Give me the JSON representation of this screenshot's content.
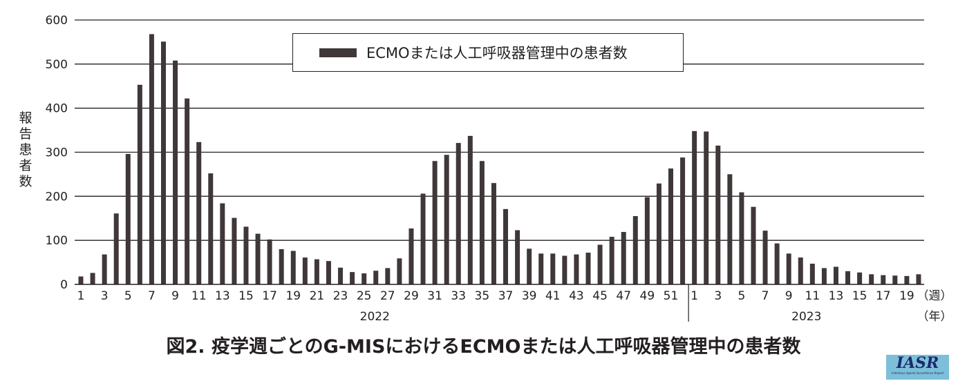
{
  "chart_data": {
    "type": "bar",
    "title": "図2. 疫学週ごとのG-MISにおけるECMOまたは人工呼吸器管理中の患者数",
    "ylabel": "報告患者数",
    "xlabel_week": "（週）",
    "xlabel_year": "（年）",
    "ylim": [
      0,
      600
    ],
    "yticks": [
      0,
      100,
      200,
      300,
      400,
      500,
      600
    ],
    "legend": "ECMOまたは人工呼吸器管理中の患者数",
    "legend_position": "top-center",
    "grid": true,
    "years": [
      {
        "label": "2022",
        "weeks": 52
      },
      {
        "label": "2023",
        "weeks": 20
      }
    ],
    "categories": [
      1,
      2,
      3,
      4,
      5,
      6,
      7,
      8,
      9,
      10,
      11,
      12,
      13,
      14,
      15,
      16,
      17,
      18,
      19,
      20,
      21,
      22,
      23,
      24,
      25,
      26,
      27,
      28,
      29,
      30,
      31,
      32,
      33,
      34,
      35,
      36,
      37,
      38,
      39,
      40,
      41,
      42,
      43,
      44,
      45,
      46,
      47,
      48,
      49,
      50,
      51,
      52,
      1,
      2,
      3,
      4,
      5,
      6,
      7,
      8,
      9,
      10,
      11,
      12,
      13,
      14,
      15,
      16,
      17,
      18,
      19,
      20
    ],
    "values": [
      18,
      26,
      68,
      161,
      296,
      453,
      568,
      551,
      508,
      422,
      323,
      252,
      184,
      151,
      131,
      115,
      102,
      80,
      76,
      61,
      57,
      53,
      38,
      28,
      25,
      31,
      37,
      59,
      127,
      206,
      280,
      294,
      321,
      337,
      280,
      230,
      171,
      123,
      81,
      70,
      70,
      65,
      68,
      72,
      90,
      108,
      119,
      155,
      198,
      229,
      263,
      288,
      348,
      347,
      315,
      250,
      209,
      176,
      122,
      93,
      70,
      61,
      47,
      37,
      40,
      30,
      27,
      23,
      21,
      20,
      19,
      23
    ],
    "bar_color": "#3f3738"
  },
  "logo": {
    "text": "IASR",
    "subtext": "Infectious Agents Surveillance Report"
  }
}
